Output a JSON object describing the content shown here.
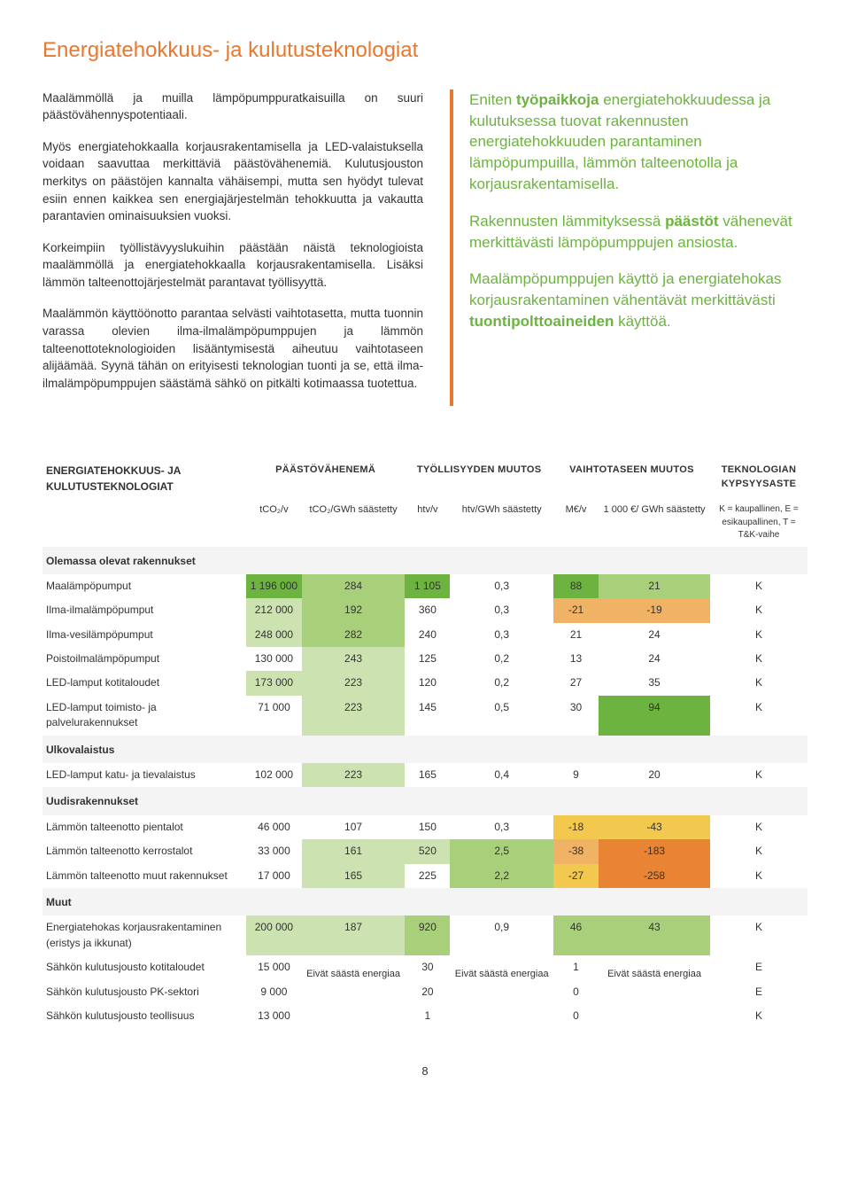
{
  "title": "Energiatehokkuus- ja kulutusteknologiat",
  "paragraphs": {
    "p1": "Maalämmöllä ja muilla lämpöpumppuratkaisuilla on suuri päästövähennyspotentiaali.",
    "p2": "Myös energiatehokkaalla korjausrakentamisella ja LED-valaistuksella voidaan saavuttaa merkittäviä päästövähenemiä. Kulutusjouston merkitys on päästöjen kannalta vähäisempi, mutta sen hyödyt tulevat esiin ennen kaikkea sen energiajärjestelmän tehokkuutta ja vakautta parantavien ominaisuuksien vuoksi.",
    "p3": "Korkeimpiin työllistävyyslukuihin päästään näistä teknologioista maalämmöllä ja energiatehokkaalla korjausrakentamisella. Lisäksi lämmön talteenottojärjestelmät parantavat työllisyyttä.",
    "p4": "Maalämmön käyttöönotto parantaa selvästi vaihtotasetta, mutta tuonnin varassa olevien ilma-ilmalämpöpumppujen ja lämmön talteenottoteknologioiden lisääntymisestä aiheutuu vaihtotaseen alijäämää. Syynä tähän on erityisesti teknologian tuonti ja se, että ilma-ilmalämpöpumppujen säästämä sähkö on pitkälti kotimaassa tuotettua."
  },
  "highlights": {
    "h1a": "Eniten ",
    "h1b": "työpaikkoja",
    "h1c": " energiatehokkuudessa ja kulutuksessa tuovat rakennusten energiatehokkuuden parantaminen lämpöpumpuilla, lämmön talteenotolla ja korjausrakentamisella.",
    "h2a": "Rakennusten lämmityksessä ",
    "h2b": "päästöt",
    "h2c": " vähenevät merkittävästi lämpöpumppujen ansiosta.",
    "h3a": "Maalämpöpumppujen käyttö ja energiatehokas korjausrakentaminen vähentävät merkittävästi ",
    "h3b": "tuontipolttoaineiden",
    "h3c": " käyttöä."
  },
  "table": {
    "headers": {
      "main": "ENERGIATEHOKKUUS- JA KULUTUSTEKNOLOGIAT",
      "h1": "PÄÄSTÖVÄHENEMÄ",
      "h2": "TYÖLLISYYDEN MUUTOS",
      "h3": "VAIHTOTASEEN MUUTOS",
      "h4": "TEKNOLOGIAN KYPSYYSASTE"
    },
    "subheaders": {
      "s1": "tCO₂/v",
      "s2": "tCO₂/GWh säästetty",
      "s3": "htv/v",
      "s4": "htv/GWh säästetty",
      "s5": "M€/v",
      "s6": "1 000 €/ GWh säästetty",
      "s7": "K = kaupallinen, E = esikaupallinen, T = T&K-vaihe"
    },
    "sections": {
      "sec1": "Olemassa olevat rakennukset",
      "sec2": "Ulkovalaistus",
      "sec3": "Uudisrakennukset",
      "sec4": "Muut"
    },
    "rows": [
      {
        "label": "Maalämpöpumput",
        "v": [
          "1 196 000",
          "284",
          "1 105",
          "0,3",
          "88",
          "21",
          "K"
        ],
        "c": [
          "#6cb33f",
          "#a8cf7a",
          "#6cb33f",
          "",
          "#6cb33f",
          "#a8cf7a",
          ""
        ]
      },
      {
        "label": "Ilma-ilmalämpöpumput",
        "v": [
          "212 000",
          "192",
          "360",
          "0,3",
          "-21",
          "-19",
          "K"
        ],
        "c": [
          "#cde2b1",
          "#a8cf7a",
          "",
          "",
          "#f0b264",
          "#f0b264",
          ""
        ]
      },
      {
        "label": "Ilma-vesilämpöpumput",
        "v": [
          "248 000",
          "282",
          "240",
          "0,3",
          "21",
          "24",
          "K"
        ],
        "c": [
          "#cde2b1",
          "#a8cf7a",
          "",
          "",
          "",
          "",
          ""
        ]
      },
      {
        "label": "Poistoilmalämpöpumput",
        "v": [
          "130 000",
          "243",
          "125",
          "0,2",
          "13",
          "24",
          "K"
        ],
        "c": [
          "",
          "#cde2b1",
          "",
          "",
          "",
          "",
          ""
        ]
      },
      {
        "label": "LED-lamput kotitaloudet",
        "v": [
          "173 000",
          "223",
          "120",
          "0,2",
          "27",
          "35",
          "K"
        ],
        "c": [
          "#cde2b1",
          "#cde2b1",
          "",
          "",
          "",
          "",
          ""
        ]
      },
      {
        "label": "LED-lamput toimisto- ja palvelurakennukset",
        "v": [
          "71 000",
          "223",
          "145",
          "0,5",
          "30",
          "94",
          "K"
        ],
        "c": [
          "",
          "#cde2b1",
          "",
          "",
          "",
          "#6cb33f",
          ""
        ]
      },
      {
        "label": "LED-lamput katu- ja tievalaistus",
        "v": [
          "102 000",
          "223",
          "165",
          "0,4",
          "9",
          "20",
          "K"
        ],
        "c": [
          "",
          "#cde2b1",
          "",
          "",
          "",
          "",
          ""
        ]
      },
      {
        "label": "Lämmön talteenotto pientalot",
        "v": [
          "46 000",
          "107",
          "150",
          "0,3",
          "-18",
          "-43",
          "K"
        ],
        "c": [
          "",
          "",
          "",
          "",
          "#f2c84f",
          "#f2c84f",
          ""
        ]
      },
      {
        "label": "Lämmön talteenotto kerrostalot",
        "v": [
          "33 000",
          "161",
          "520",
          "2,5",
          "-38",
          "-183",
          "K"
        ],
        "c": [
          "",
          "#cde2b1",
          "#cde2b1",
          "#a8cf7a",
          "#f0b264",
          "#e88434",
          ""
        ]
      },
      {
        "label": "Lämmön talteenotto muut rakennukset",
        "v": [
          "17 000",
          "165",
          "225",
          "2,2",
          "-27",
          "-258",
          "K"
        ],
        "c": [
          "",
          "#cde2b1",
          "",
          "#a8cf7a",
          "#f2c84f",
          "#e88434",
          ""
        ]
      },
      {
        "label": "Energiatehokas korjausrakentaminen (eristys ja ikkunat)",
        "v": [
          "200 000",
          "187",
          "920",
          "0,9",
          "46",
          "43",
          "K"
        ],
        "c": [
          "#cde2b1",
          "#cde2b1",
          "#a8cf7a",
          "",
          "#a8cf7a",
          "#a8cf7a",
          ""
        ]
      },
      {
        "label": "Sähkön kulutusjousto kotitaloudet",
        "v": [
          "15 000",
          "",
          "30",
          "",
          "1",
          "",
          "E"
        ],
        "c": [
          "",
          "",
          "",
          "",
          "",
          "",
          ""
        ]
      },
      {
        "label": "Sähkön kulutusjousto PK-sektori",
        "v": [
          "9 000",
          "",
          "20",
          "",
          "0",
          "",
          "E"
        ],
        "c": [
          "",
          "",
          "",
          "",
          "",
          "",
          ""
        ]
      },
      {
        "label": "Sähkön kulutusjousto teollisuus",
        "v": [
          "13 000",
          "",
          "1",
          "",
          "0",
          "",
          "K"
        ],
        "c": [
          "",
          "",
          "",
          "",
          "",
          "",
          ""
        ]
      }
    ],
    "merged_note": "Eivät säästä energiaa",
    "page_num": "8"
  }
}
